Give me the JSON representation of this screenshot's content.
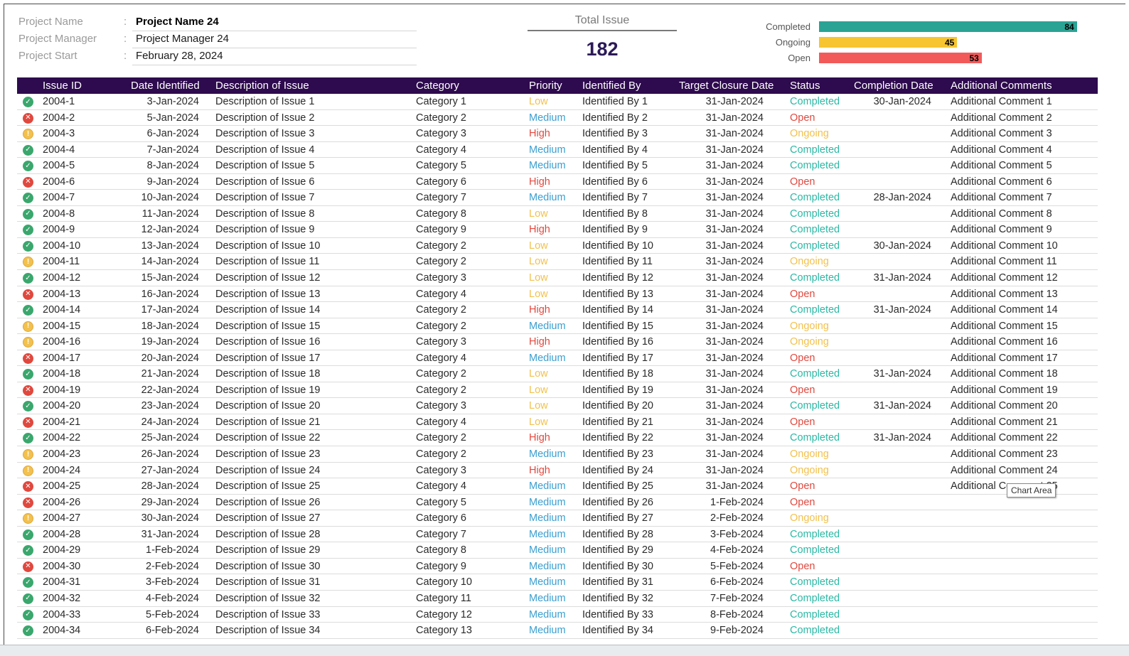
{
  "project": {
    "name_label": "Project Name",
    "name_value": "Project Name 24",
    "manager_label": "Project Manager",
    "manager_value": "Project Manager 24",
    "start_label": "Project Start",
    "start_value": "February 28, 2024",
    "separator": ":"
  },
  "summary": {
    "total_label": "Total Issue",
    "total_value": "182"
  },
  "chart_data": {
    "type": "bar",
    "orientation": "horizontal",
    "categories": [
      "Completed",
      "Ongoing",
      "Open"
    ],
    "values": [
      84,
      45,
      53
    ],
    "colors": [
      "#2aa394",
      "#f7c531",
      "#f25a5a"
    ],
    "xlim": [
      0,
      88
    ]
  },
  "table": {
    "headers": [
      "Issue ID",
      "Date Identified",
      "Description of Issue",
      "Category",
      "Priority",
      "Identified By",
      "Target Closure Date",
      "Status",
      "Completion Date",
      "Additional Comments"
    ],
    "rows": [
      {
        "icon": "check",
        "id": "2004-1",
        "date": "3-Jan-2024",
        "desc": "Description of Issue 1",
        "cat": "Category 1",
        "pri": "Low",
        "by": "Identified By 1",
        "tcd": "31-Jan-2024",
        "status": "Completed",
        "cd": "30-Jan-2024",
        "comment": "Additional Comment 1"
      },
      {
        "icon": "x",
        "id": "2004-2",
        "date": "5-Jan-2024",
        "desc": "Description of Issue 2",
        "cat": "Category 2",
        "pri": "Medium",
        "by": "Identified By 2",
        "tcd": "31-Jan-2024",
        "status": "Open",
        "cd": "",
        "comment": "Additional Comment 2"
      },
      {
        "icon": "warn",
        "id": "2004-3",
        "date": "6-Jan-2024",
        "desc": "Description of Issue 3",
        "cat": "Category 3",
        "pri": "High",
        "by": "Identified By 3",
        "tcd": "31-Jan-2024",
        "status": "Ongoing",
        "cd": "",
        "comment": "Additional Comment 3"
      },
      {
        "icon": "check",
        "id": "2004-4",
        "date": "7-Jan-2024",
        "desc": "Description of Issue 4",
        "cat": "Category 4",
        "pri": "Medium",
        "by": "Identified By 4",
        "tcd": "31-Jan-2024",
        "status": "Completed",
        "cd": "",
        "comment": "Additional Comment 4"
      },
      {
        "icon": "check",
        "id": "2004-5",
        "date": "8-Jan-2024",
        "desc": "Description of Issue 5",
        "cat": "Category 5",
        "pri": "Medium",
        "by": "Identified By 5",
        "tcd": "31-Jan-2024",
        "status": "Completed",
        "cd": "",
        "comment": "Additional Comment 5"
      },
      {
        "icon": "x",
        "id": "2004-6",
        "date": "9-Jan-2024",
        "desc": "Description of Issue 6",
        "cat": "Category 6",
        "pri": "High",
        "by": "Identified By 6",
        "tcd": "31-Jan-2024",
        "status": "Open",
        "cd": "",
        "comment": "Additional Comment 6"
      },
      {
        "icon": "check",
        "id": "2004-7",
        "date": "10-Jan-2024",
        "desc": "Description of Issue 7",
        "cat": "Category 7",
        "pri": "Medium",
        "by": "Identified By 7",
        "tcd": "31-Jan-2024",
        "status": "Completed",
        "cd": "28-Jan-2024",
        "comment": "Additional Comment 7"
      },
      {
        "icon": "check",
        "id": "2004-8",
        "date": "11-Jan-2024",
        "desc": "Description of Issue 8",
        "cat": "Category 8",
        "pri": "Low",
        "by": "Identified By 8",
        "tcd": "31-Jan-2024",
        "status": "Completed",
        "cd": "",
        "comment": "Additional Comment 8"
      },
      {
        "icon": "check",
        "id": "2004-9",
        "date": "12-Jan-2024",
        "desc": "Description of Issue 9",
        "cat": "Category 9",
        "pri": "High",
        "by": "Identified By 9",
        "tcd": "31-Jan-2024",
        "status": "Completed",
        "cd": "",
        "comment": "Additional Comment 9"
      },
      {
        "icon": "check",
        "id": "2004-10",
        "date": "13-Jan-2024",
        "desc": "Description of Issue 10",
        "cat": "Category 2",
        "pri": "Low",
        "by": "Identified By 10",
        "tcd": "31-Jan-2024",
        "status": "Completed",
        "cd": "30-Jan-2024",
        "comment": "Additional Comment 10"
      },
      {
        "icon": "warn",
        "id": "2004-11",
        "date": "14-Jan-2024",
        "desc": "Description of Issue 11",
        "cat": "Category 2",
        "pri": "Low",
        "by": "Identified By 11",
        "tcd": "31-Jan-2024",
        "status": "Ongoing",
        "cd": "",
        "comment": "Additional Comment 11"
      },
      {
        "icon": "check",
        "id": "2004-12",
        "date": "15-Jan-2024",
        "desc": "Description of Issue 12",
        "cat": "Category 3",
        "pri": "Low",
        "by": "Identified By 12",
        "tcd": "31-Jan-2024",
        "status": "Completed",
        "cd": "31-Jan-2024",
        "comment": "Additional Comment 12"
      },
      {
        "icon": "x",
        "id": "2004-13",
        "date": "16-Jan-2024",
        "desc": "Description of Issue 13",
        "cat": "Category 4",
        "pri": "Low",
        "by": "Identified By 13",
        "tcd": "31-Jan-2024",
        "status": "Open",
        "cd": "",
        "comment": "Additional Comment 13"
      },
      {
        "icon": "check",
        "id": "2004-14",
        "date": "17-Jan-2024",
        "desc": "Description of Issue 14",
        "cat": "Category 2",
        "pri": "High",
        "by": "Identified By 14",
        "tcd": "31-Jan-2024",
        "status": "Completed",
        "cd": "31-Jan-2024",
        "comment": "Additional Comment 14"
      },
      {
        "icon": "warn",
        "id": "2004-15",
        "date": "18-Jan-2024",
        "desc": "Description of Issue 15",
        "cat": "Category 2",
        "pri": "Medium",
        "by": "Identified By 15",
        "tcd": "31-Jan-2024",
        "status": "Ongoing",
        "cd": "",
        "comment": "Additional Comment 15"
      },
      {
        "icon": "warn",
        "id": "2004-16",
        "date": "19-Jan-2024",
        "desc": "Description of Issue 16",
        "cat": "Category 3",
        "pri": "High",
        "by": "Identified By 16",
        "tcd": "31-Jan-2024",
        "status": "Ongoing",
        "cd": "",
        "comment": "Additional Comment 16"
      },
      {
        "icon": "x",
        "id": "2004-17",
        "date": "20-Jan-2024",
        "desc": "Description of Issue 17",
        "cat": "Category 4",
        "pri": "Medium",
        "by": "Identified By 17",
        "tcd": "31-Jan-2024",
        "status": "Open",
        "cd": "",
        "comment": "Additional Comment 17"
      },
      {
        "icon": "check",
        "id": "2004-18",
        "date": "21-Jan-2024",
        "desc": "Description of Issue 18",
        "cat": "Category 2",
        "pri": "Low",
        "by": "Identified By 18",
        "tcd": "31-Jan-2024",
        "status": "Completed",
        "cd": "31-Jan-2024",
        "comment": "Additional Comment 18"
      },
      {
        "icon": "x",
        "id": "2004-19",
        "date": "22-Jan-2024",
        "desc": "Description of Issue 19",
        "cat": "Category 2",
        "pri": "Low",
        "by": "Identified By 19",
        "tcd": "31-Jan-2024",
        "status": "Open",
        "cd": "",
        "comment": "Additional Comment 19"
      },
      {
        "icon": "check",
        "id": "2004-20",
        "date": "23-Jan-2024",
        "desc": "Description of Issue 20",
        "cat": "Category 3",
        "pri": "Low",
        "by": "Identified By 20",
        "tcd": "31-Jan-2024",
        "status": "Completed",
        "cd": "31-Jan-2024",
        "comment": "Additional Comment 20"
      },
      {
        "icon": "x",
        "id": "2004-21",
        "date": "24-Jan-2024",
        "desc": "Description of Issue 21",
        "cat": "Category 4",
        "pri": "Low",
        "by": "Identified By 21",
        "tcd": "31-Jan-2024",
        "status": "Open",
        "cd": "",
        "comment": "Additional Comment 21"
      },
      {
        "icon": "check",
        "id": "2004-22",
        "date": "25-Jan-2024",
        "desc": "Description of Issue 22",
        "cat": "Category 2",
        "pri": "High",
        "by": "Identified By 22",
        "tcd": "31-Jan-2024",
        "status": "Completed",
        "cd": "31-Jan-2024",
        "comment": "Additional Comment 22"
      },
      {
        "icon": "warn",
        "id": "2004-23",
        "date": "26-Jan-2024",
        "desc": "Description of Issue 23",
        "cat": "Category 2",
        "pri": "Medium",
        "by": "Identified By 23",
        "tcd": "31-Jan-2024",
        "status": "Ongoing",
        "cd": "",
        "comment": "Additional Comment 23"
      },
      {
        "icon": "warn",
        "id": "2004-24",
        "date": "27-Jan-2024",
        "desc": "Description of Issue 24",
        "cat": "Category 3",
        "pri": "High",
        "by": "Identified By 24",
        "tcd": "31-Jan-2024",
        "status": "Ongoing",
        "cd": "",
        "comment": "Additional Comment 24"
      },
      {
        "icon": "x",
        "id": "2004-25",
        "date": "28-Jan-2024",
        "desc": "Description of Issue 25",
        "cat": "Category 4",
        "pri": "Medium",
        "by": "Identified By 25",
        "tcd": "31-Jan-2024",
        "status": "Open",
        "cd": "",
        "comment": "Additional Comment 25"
      },
      {
        "icon": "x",
        "id": "2004-26",
        "date": "29-Jan-2024",
        "desc": "Description of Issue 26",
        "cat": "Category 5",
        "pri": "Medium",
        "by": "Identified By 26",
        "tcd": "1-Feb-2024",
        "status": "Open",
        "cd": "",
        "comment": ""
      },
      {
        "icon": "warn",
        "id": "2004-27",
        "date": "30-Jan-2024",
        "desc": "Description of Issue 27",
        "cat": "Category 6",
        "pri": "Medium",
        "by": "Identified By 27",
        "tcd": "2-Feb-2024",
        "status": "Ongoing",
        "cd": "",
        "comment": ""
      },
      {
        "icon": "check",
        "id": "2004-28",
        "date": "31-Jan-2024",
        "desc": "Description of Issue 28",
        "cat": "Category 7",
        "pri": "Medium",
        "by": "Identified By 28",
        "tcd": "3-Feb-2024",
        "status": "Completed",
        "cd": "",
        "comment": ""
      },
      {
        "icon": "check",
        "id": "2004-29",
        "date": "1-Feb-2024",
        "desc": "Description of Issue 29",
        "cat": "Category 8",
        "pri": "Medium",
        "by": "Identified By 29",
        "tcd": "4-Feb-2024",
        "status": "Completed",
        "cd": "",
        "comment": ""
      },
      {
        "icon": "x",
        "id": "2004-30",
        "date": "2-Feb-2024",
        "desc": "Description of Issue 30",
        "cat": "Category 9",
        "pri": "Medium",
        "by": "Identified By 30",
        "tcd": "5-Feb-2024",
        "status": "Open",
        "cd": "",
        "comment": ""
      },
      {
        "icon": "check",
        "id": "2004-31",
        "date": "3-Feb-2024",
        "desc": "Description of Issue 31",
        "cat": "Category 10",
        "pri": "Medium",
        "by": "Identified By 31",
        "tcd": "6-Feb-2024",
        "status": "Completed",
        "cd": "",
        "comment": ""
      },
      {
        "icon": "check",
        "id": "2004-32",
        "date": "4-Feb-2024",
        "desc": "Description of Issue 32",
        "cat": "Category 11",
        "pri": "Medium",
        "by": "Identified By 32",
        "tcd": "7-Feb-2024",
        "status": "Completed",
        "cd": "",
        "comment": ""
      },
      {
        "icon": "check",
        "id": "2004-33",
        "date": "5-Feb-2024",
        "desc": "Description of Issue 33",
        "cat": "Category 12",
        "pri": "Medium",
        "by": "Identified By 33",
        "tcd": "8-Feb-2024",
        "status": "Completed",
        "cd": "",
        "comment": ""
      },
      {
        "icon": "check",
        "id": "2004-34",
        "date": "6-Feb-2024",
        "desc": "Description of Issue 34",
        "cat": "Category 13",
        "pri": "Medium",
        "by": "Identified By 34",
        "tcd": "9-Feb-2024",
        "status": "Completed",
        "cd": "",
        "comment": ""
      }
    ]
  },
  "tooltip": {
    "text": "Chart Area"
  }
}
